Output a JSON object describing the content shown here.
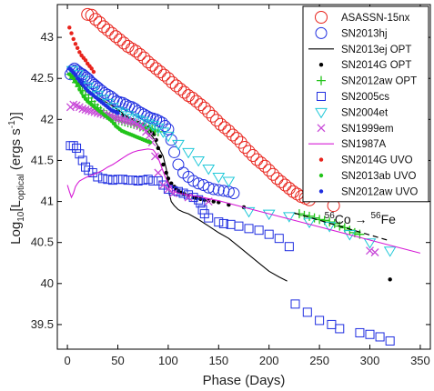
{
  "chart_data": {
    "type": "scatter",
    "title": "",
    "xlabel": "Phase (Days)",
    "ylabel_main": "Log",
    "ylabel_sub": "10",
    "ylabel_rest": "[L",
    "ylabel_lsub": "optical",
    "ylabel_unit": " (ergs s",
    "ylabel_exp": "-1",
    "ylabel_end": ")]",
    "xlim": [
      -10,
      360
    ],
    "ylim": [
      39.2,
      43.4
    ],
    "xticks": [
      0,
      50,
      100,
      150,
      200,
      250,
      300,
      350
    ],
    "yticks": [
      39.5,
      40,
      40.5,
      41,
      41.5,
      42,
      42.5,
      43
    ],
    "legend_position": "top-right",
    "annotation": {
      "text_pre": "56",
      "text_a": "Co → ",
      "text_post": "56",
      "text_b": "Fe",
      "x": 255,
      "y": 40.73
    },
    "decay_line": {
      "x": [
        225,
        320
      ],
      "y": [
        40.86,
        40.52
      ]
    },
    "series": [
      {
        "name": "ASASSN-15nx",
        "marker": "circle-open-large",
        "color": "#e8231c",
        "x": [
          20,
          24,
          28,
          32,
          36,
          40,
          44,
          48,
          52,
          56,
          60,
          64,
          68,
          72,
          76,
          80,
          84,
          88,
          92,
          96,
          100,
          104,
          108,
          112,
          116,
          120,
          124,
          128,
          132,
          136,
          140,
          144,
          148,
          152,
          156,
          160,
          164,
          168,
          172,
          176,
          180,
          184,
          188,
          192,
          196,
          200,
          204,
          208,
          212,
          216,
          220,
          224,
          228,
          232,
          236,
          240,
          264
        ],
        "y": [
          43.28,
          43.27,
          43.22,
          43.18,
          43.13,
          43.09,
          43.05,
          43.01,
          42.97,
          42.93,
          42.89,
          42.86,
          42.83,
          42.79,
          42.75,
          42.7,
          42.66,
          42.62,
          42.58,
          42.54,
          42.5,
          42.45,
          42.41,
          42.37,
          42.33,
          42.29,
          42.26,
          42.22,
          42.18,
          42.14,
          42.09,
          42.04,
          41.99,
          41.94,
          41.9,
          41.86,
          41.81,
          41.77,
          41.72,
          41.66,
          41.61,
          41.56,
          41.51,
          41.47,
          41.43,
          41.38,
          41.33,
          41.28,
          41.24,
          41.2,
          41.16,
          41.12,
          41.09,
          41.06,
          41.04,
          41.02,
          40.95
        ]
      },
      {
        "name": "SN2013hj",
        "marker": "circle-open",
        "color": "#1f2ee0",
        "x": [
          3,
          5,
          7,
          9,
          11,
          13,
          15,
          17,
          19,
          21,
          23,
          25,
          27,
          29,
          31,
          34,
          37,
          40,
          43,
          46,
          49,
          52,
          55,
          58,
          61,
          64,
          67,
          70,
          73,
          76,
          79,
          82,
          85,
          88,
          91,
          94,
          97,
          100,
          103,
          106,
          110,
          115,
          120,
          125,
          130,
          135,
          140,
          145,
          150,
          155,
          160,
          165
        ],
        "y": [
          42.55,
          42.6,
          42.62,
          42.6,
          42.58,
          42.56,
          42.55,
          42.53,
          42.51,
          42.49,
          42.46,
          42.44,
          42.42,
          42.4,
          42.38,
          42.35,
          42.32,
          42.3,
          42.28,
          42.25,
          42.22,
          42.21,
          42.2,
          42.18,
          42.16,
          42.15,
          42.13,
          42.1,
          42.08,
          42.06,
          42.04,
          42.02,
          42.01,
          42.0,
          41.98,
          41.96,
          41.92,
          41.88,
          41.75,
          41.6,
          41.45,
          41.35,
          41.3,
          41.25,
          41.22,
          41.2,
          41.17,
          41.15,
          41.14,
          41.13,
          41.12,
          41.1
        ]
      },
      {
        "name": "SN2013ej OPT",
        "marker": "line",
        "color": "#000000",
        "x": [
          3,
          10,
          20,
          30,
          40,
          50,
          60,
          70,
          80,
          85,
          90,
          95,
          98,
          100,
          101,
          103,
          106,
          110,
          115,
          120,
          130,
          140,
          150,
          160,
          170,
          180,
          190,
          200,
          210,
          218
        ],
        "y": [
          42.55,
          42.45,
          42.35,
          42.27,
          42.2,
          42.12,
          42.03,
          41.95,
          41.85,
          41.78,
          41.67,
          41.55,
          41.4,
          41.25,
          41.1,
          41.0,
          40.95,
          40.9,
          40.87,
          40.85,
          40.78,
          40.7,
          40.62,
          40.55,
          40.45,
          40.35,
          40.25,
          40.15,
          40.08,
          40.03
        ]
      },
      {
        "name": "SN2014G OPT",
        "marker": "dot",
        "color": "#000000",
        "x": [
          50,
          55,
          60,
          65,
          70,
          75,
          80,
          82,
          84,
          86,
          88,
          90,
          92,
          95,
          98,
          100,
          103,
          106,
          108,
          110,
          113,
          116,
          120,
          125,
          128,
          132,
          136,
          140,
          145,
          150,
          160,
          175,
          320
        ],
        "y": [
          42.1,
          42.05,
          42.02,
          41.99,
          41.96,
          41.94,
          41.9,
          41.88,
          41.85,
          41.82,
          41.75,
          41.65,
          41.55,
          41.45,
          41.35,
          41.28,
          41.22,
          41.18,
          41.15,
          41.13,
          41.11,
          41.09,
          41.07,
          41.05,
          41.04,
          41.03,
          41.02,
          41.01,
          41.0,
          40.99,
          40.96,
          40.93,
          40.05
        ]
      },
      {
        "name": "SN2012aw OPT",
        "marker": "plus",
        "color": "#22c41a",
        "x": [
          3,
          6,
          9,
          12,
          15,
          18,
          21,
          24,
          27,
          30,
          33,
          36,
          39,
          42,
          45,
          48,
          51,
          54,
          57,
          60,
          63,
          66,
          69,
          72,
          75,
          78,
          81,
          84,
          87,
          90,
          230,
          235,
          240,
          245,
          250,
          255,
          260,
          265,
          270,
          275,
          280,
          285,
          290
        ],
        "y": [
          42.55,
          42.5,
          42.45,
          42.4,
          42.35,
          42.3,
          42.26,
          42.22,
          42.18,
          42.14,
          42.11,
          42.08,
          42.06,
          42.04,
          42.02,
          42.0,
          41.99,
          41.98,
          41.97,
          41.96,
          41.95,
          41.94,
          41.93,
          41.92,
          41.91,
          41.9,
          41.89,
          41.88,
          41.87,
          41.85,
          40.85,
          40.83,
          40.82,
          40.8,
          40.78,
          40.77,
          40.75,
          40.73,
          40.7,
          40.68,
          40.65,
          40.62,
          40.6
        ]
      },
      {
        "name": "SN2005cs",
        "marker": "square-open",
        "color": "#1f2ee0",
        "x": [
          3,
          6,
          9,
          12,
          15,
          18,
          21,
          25,
          30,
          35,
          40,
          45,
          50,
          55,
          60,
          65,
          70,
          75,
          80,
          85,
          90,
          95,
          100,
          105,
          110,
          115,
          120,
          125,
          130,
          132,
          134,
          136,
          140,
          150,
          155,
          162,
          170,
          180,
          190,
          200,
          210,
          220,
          226,
          238,
          250,
          262,
          270,
          290,
          300,
          310,
          320
        ],
        "y": [
          41.68,
          41.68,
          41.65,
          41.58,
          41.5,
          41.42,
          41.38,
          41.35,
          41.3,
          41.28,
          41.27,
          41.26,
          41.27,
          41.27,
          41.26,
          41.26,
          41.25,
          41.26,
          41.27,
          41.25,
          41.25,
          41.2,
          41.15,
          41.13,
          41.12,
          41.1,
          41.08,
          41.05,
          41.02,
          40.98,
          40.9,
          40.85,
          40.8,
          40.75,
          40.73,
          40.72,
          40.7,
          40.67,
          40.65,
          40.6,
          40.55,
          40.45,
          39.75,
          39.65,
          39.55,
          39.5,
          39.45,
          39.4,
          39.38,
          39.35,
          39.3
        ]
      },
      {
        "name": "SN2004et",
        "marker": "triangle-down-open",
        "color": "#1fc8d8",
        "x": [
          5,
          10,
          15,
          20,
          25,
          30,
          35,
          40,
          45,
          50,
          55,
          60,
          65,
          70,
          75,
          80,
          85,
          90,
          95,
          100,
          110,
          120,
          130,
          140,
          150,
          160,
          180,
          200,
          220,
          240,
          260,
          280,
          300,
          320
        ],
        "y": [
          42.6,
          42.55,
          42.48,
          42.4,
          42.35,
          42.3,
          42.25,
          42.2,
          42.15,
          42.1,
          42.08,
          42.05,
          42.02,
          42.0,
          41.98,
          41.95,
          41.93,
          41.9,
          41.85,
          41.8,
          41.7,
          41.6,
          41.5,
          41.4,
          41.3,
          41.25,
          40.88,
          40.85,
          40.82,
          40.75,
          40.7,
          40.6,
          40.5,
          40.4
        ]
      },
      {
        "name": "SN1999em",
        "marker": "x",
        "color": "#c84ad8",
        "x": [
          3,
          6,
          9,
          12,
          15,
          18,
          21,
          24,
          27,
          30,
          33,
          36,
          39,
          42,
          45,
          48,
          51,
          54,
          57,
          60,
          63,
          66,
          69,
          72,
          75,
          78,
          81,
          84,
          87,
          90,
          95,
          100,
          105,
          120,
          140,
          300,
          305
        ],
        "y": [
          42.15,
          42.18,
          42.17,
          42.15,
          42.13,
          42.12,
          42.11,
          42.1,
          42.09,
          42.08,
          42.07,
          42.06,
          42.05,
          42.04,
          42.03,
          42.02,
          42.01,
          42.0,
          41.99,
          41.98,
          41.97,
          41.96,
          41.94,
          41.92,
          41.9,
          41.85,
          41.8,
          41.72,
          41.55,
          41.35,
          41.2,
          41.15,
          41.1,
          41.05,
          41.0,
          40.4,
          40.38
        ]
      },
      {
        "name": "SN1987A",
        "marker": "line",
        "color": "#d61cd6",
        "x": [
          0,
          2,
          4,
          6,
          8,
          10,
          12,
          15,
          18,
          22,
          26,
          30,
          35,
          40,
          45,
          50,
          55,
          60,
          65,
          70,
          75,
          80,
          85,
          88,
          91,
          94,
          97,
          100,
          103,
          106,
          110,
          130,
          150,
          200,
          250,
          300,
          350
        ],
        "y": [
          41.2,
          41.12,
          41.05,
          41.1,
          41.18,
          41.22,
          41.25,
          41.27,
          41.29,
          41.31,
          41.33,
          41.35,
          41.38,
          41.42,
          41.45,
          41.49,
          41.53,
          41.57,
          41.6,
          41.62,
          41.63,
          41.64,
          41.63,
          41.58,
          41.5,
          41.4,
          41.3,
          41.22,
          41.16,
          41.12,
          41.1,
          41.06,
          41.01,
          40.85,
          40.69,
          40.53,
          40.37
        ]
      },
      {
        "name": "SN2014G UVO",
        "marker": "dot",
        "color": "#e8231c",
        "x": [
          2,
          4,
          6,
          8,
          10,
          12,
          14,
          16,
          18,
          20,
          22,
          24,
          26
        ],
        "y": [
          43.12,
          43.05,
          42.98,
          42.92,
          42.87,
          42.82,
          42.78,
          42.75,
          42.72,
          42.68,
          42.65,
          42.62,
          42.58
        ]
      },
      {
        "name": "SN2013ab UVO",
        "marker": "dot",
        "color": "#22c41a",
        "x": [
          2,
          4,
          6,
          8,
          10,
          12,
          14,
          16,
          18,
          20,
          22,
          24,
          26,
          28,
          30,
          32,
          34,
          36,
          38,
          40,
          42,
          44,
          46,
          48,
          50,
          52,
          54,
          56,
          58,
          60,
          62,
          64,
          66,
          68,
          70,
          72,
          74,
          76,
          78,
          80,
          82
        ],
        "y": [
          42.55,
          42.53,
          42.5,
          42.46,
          42.42,
          42.37,
          42.33,
          42.28,
          42.25,
          42.22,
          42.2,
          42.18,
          42.16,
          42.14,
          42.12,
          42.1,
          42.08,
          42.06,
          42.04,
          42.02,
          42.0,
          41.98,
          41.95,
          41.92,
          41.9,
          41.88,
          41.86,
          41.85,
          41.84,
          41.83,
          41.82,
          41.81,
          41.8,
          41.79,
          41.78,
          41.77,
          41.76,
          41.75,
          41.74,
          41.73,
          41.72
        ]
      },
      {
        "name": "SN2012aw UVO",
        "marker": "dot",
        "color": "#1f2ee0",
        "x": [
          2,
          4,
          6,
          8,
          10,
          12,
          14,
          16,
          18,
          20,
          22,
          24,
          26,
          28,
          30,
          32,
          34,
          36,
          38,
          40,
          42,
          44,
          46,
          48,
          50
        ],
        "y": [
          42.62,
          42.6,
          42.57,
          42.54,
          42.5,
          42.47,
          42.44,
          42.41,
          42.38,
          42.35,
          42.33,
          42.31,
          42.29,
          42.27,
          42.25,
          42.23,
          42.21,
          42.19,
          42.17,
          42.15,
          42.13,
          42.11,
          42.1,
          42.09,
          42.08
        ]
      }
    ]
  }
}
